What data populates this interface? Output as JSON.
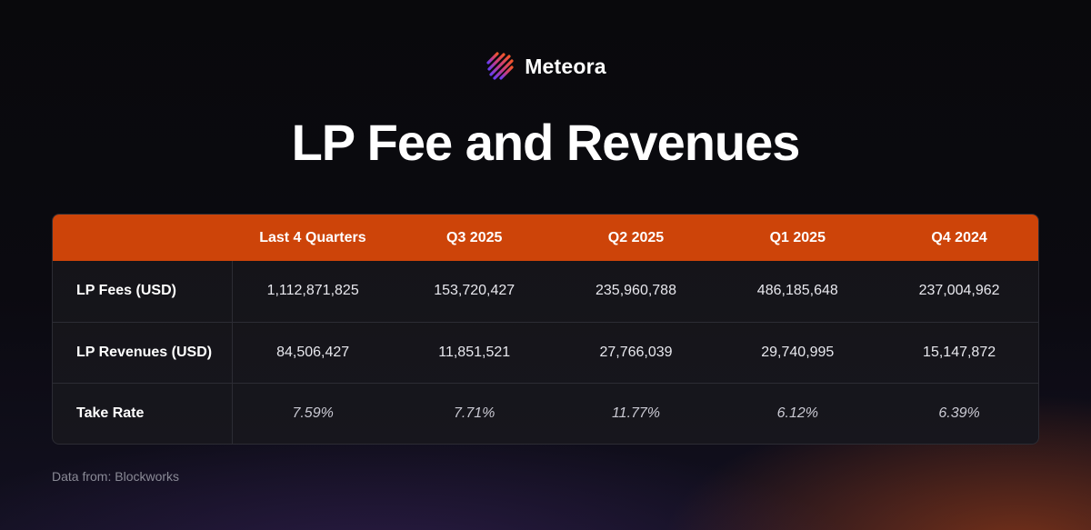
{
  "brand": {
    "name": "Meteora",
    "logo_icon": "meteora-logo-icon",
    "logo_colors": [
      "#f2552c",
      "#c43a8a",
      "#6a3df0"
    ]
  },
  "title": "LP Fee and Revenues",
  "table": {
    "header_color": "#cd4409",
    "columns": [
      "",
      "Last 4 Quarters",
      "Q3 2025",
      "Q2 2025",
      "Q1 2025",
      "Q4 2024"
    ],
    "rows": [
      {
        "label": "LP Fees (USD)",
        "values": [
          "1,112,871,825",
          "153,720,427",
          "235,960,788",
          "486,185,648",
          "237,004,962"
        ]
      },
      {
        "label": "LP Revenues (USD)",
        "values": [
          "84,506,427",
          "11,851,521",
          "27,766,039",
          "29,740,995",
          "15,147,872"
        ]
      },
      {
        "label": "Take Rate",
        "values": [
          "7.59%",
          "7.71%",
          "11.77%",
          "6.12%",
          "6.39%"
        ]
      }
    ]
  },
  "footer": {
    "source": "Data from: Blockworks"
  }
}
